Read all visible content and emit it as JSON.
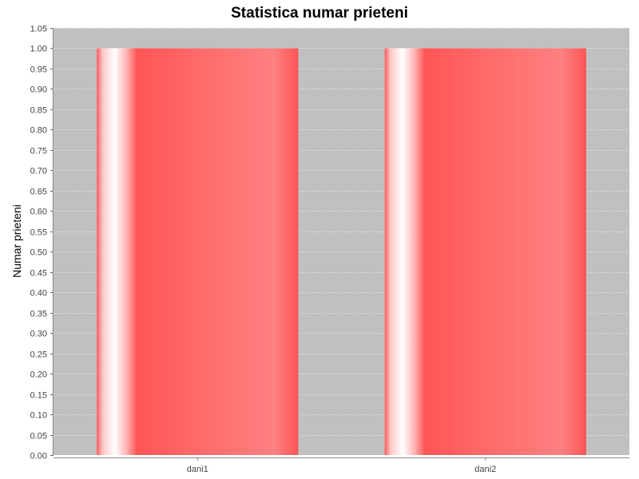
{
  "chart_data": {
    "type": "bar",
    "title": "Statistica numar prieteni",
    "xlabel": "",
    "ylabel": "Numar prieteni",
    "categories": [
      "dani1",
      "dani2"
    ],
    "series": [
      {
        "values": [
          1.0,
          1.0
        ]
      }
    ],
    "ylim": [
      0,
      1.05
    ],
    "y_tick_step": 0.05,
    "y_tick_labels": [
      "0.00",
      "0.05",
      "0.10",
      "0.15",
      "0.20",
      "0.25",
      "0.30",
      "0.35",
      "0.40",
      "0.45",
      "0.50",
      "0.55",
      "0.60",
      "0.65",
      "0.70",
      "0.75",
      "0.80",
      "0.85",
      "0.90",
      "0.95",
      "1.00",
      "1.05"
    ],
    "grid": true,
    "legend": "none",
    "colors": {
      "plot_background": "#c0c0c0",
      "bar_base": "#ff5555",
      "bar_highlight": "#ffffff",
      "gridline": "#ffffff"
    }
  }
}
